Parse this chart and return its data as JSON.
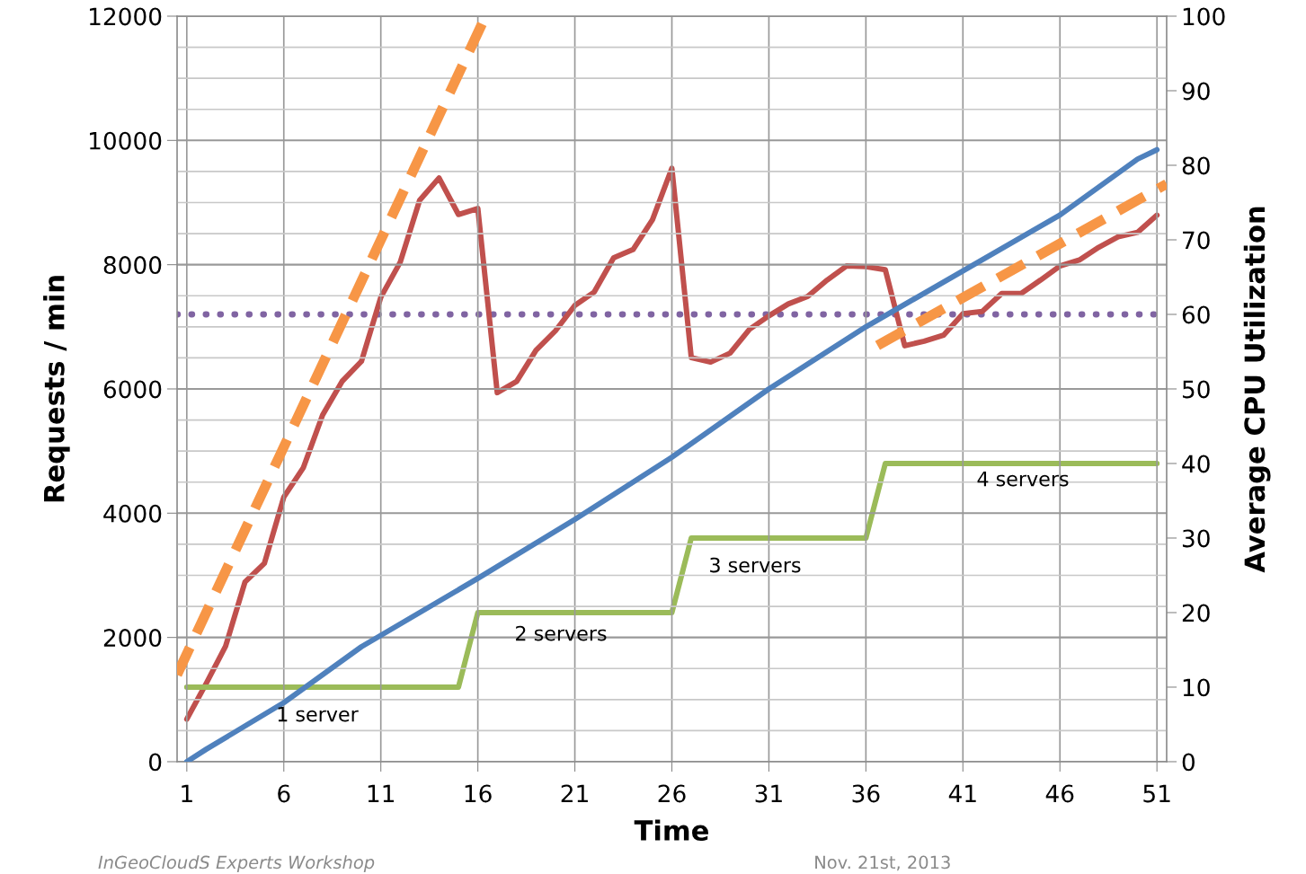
{
  "chart_data": {
    "type": "line",
    "xlabel": "Time",
    "ylabel": "Requests / min",
    "y2label": "Average CPU Utilization",
    "xlim": [
      0.5,
      51.5
    ],
    "xticks": [
      1,
      6,
      11,
      16,
      21,
      26,
      31,
      36,
      41,
      46,
      51
    ],
    "ylim": [
      0,
      12000
    ],
    "yticks": [
      0,
      2000,
      4000,
      6000,
      8000,
      10000,
      12000,
      {
        "value": 500,
        "label": null
      },
      {
        "value": 1000,
        "label": null
      },
      {
        "value": 1500,
        "label": null
      },
      {
        "value": 2500,
        "label": null
      },
      {
        "value": 3000,
        "label": null
      },
      {
        "value": 3500,
        "label": null
      },
      {
        "value": 4500,
        "label": null
      },
      {
        "value": 5000,
        "label": null
      },
      {
        "value": 5500,
        "label": null
      },
      {
        "value": 6500,
        "label": null
      },
      {
        "value": 7000,
        "label": null
      },
      {
        "value": 7500,
        "label": null
      },
      {
        "value": 8500,
        "label": null
      },
      {
        "value": 9000,
        "label": null
      },
      {
        "value": 9500,
        "label": null
      },
      {
        "value": 10500,
        "label": null
      },
      {
        "value": 11000,
        "label": null
      },
      {
        "value": 11500,
        "label": null
      }
    ],
    "y2lim": [
      0,
      100
    ],
    "y2ticks": [
      0,
      10,
      20,
      30,
      40,
      50,
      60,
      70,
      80,
      90,
      100
    ],
    "grid": true,
    "marker": "none",
    "series": [
      {
        "color": "#4f81bd",
        "x": [
          1,
          2,
          6,
          10,
          16,
          21,
          26,
          31,
          36,
          41,
          46,
          50,
          51
        ],
        "values": [
          0,
          200,
          950,
          1850,
          2950,
          3900,
          4900,
          6000,
          7000,
          7900,
          8800,
          9700,
          9850
        ]
      },
      {
        "color": "#c0504d",
        "axis": "y2",
        "x": [
          1,
          2,
          3,
          4,
          5,
          6,
          7,
          8,
          9,
          10,
          11,
          12,
          13,
          14,
          15,
          16,
          17,
          18,
          19,
          20,
          21,
          22,
          23,
          24,
          25,
          26,
          27,
          28,
          29,
          30,
          31,
          32,
          33,
          34,
          35,
          36,
          37,
          38,
          39,
          40,
          41,
          42,
          43,
          44,
          45,
          46,
          47,
          48,
          49,
          50,
          51
        ],
        "values": [
          5.7,
          10.5,
          15.5,
          24.1,
          26.6,
          35.5,
          39.4,
          46.5,
          51,
          53.7,
          62.3,
          67,
          75.3,
          78.3,
          73.4,
          74.2,
          49.5,
          51,
          55.2,
          57.8,
          61.2,
          63,
          67.6,
          68.7,
          72.7,
          79.6,
          54.2,
          53.6,
          54.8,
          58,
          59.8,
          61.4,
          62.4,
          64.6,
          66.5,
          66.4,
          66,
          55.8,
          56.4,
          57.2,
          60.1,
          60.4,
          62.8,
          62.8,
          64.6,
          66.5,
          67.3,
          69,
          70.4,
          71,
          73.3
        ]
      },
      {
        "color": "#9bbb59",
        "axis": "y2",
        "x": [
          1,
          15,
          16,
          26,
          27,
          36,
          37,
          51
        ],
        "values": [
          10,
          10,
          20,
          20,
          30,
          30,
          40,
          40
        ]
      },
      {
        "color": "#f79646",
        "line_style": "dashed",
        "x": [
          0.5,
          16.4
        ],
        "values": [
          1400,
          12000
        ]
      },
      {
        "color": "#f79646",
        "line_style": "dashed",
        "x": [
          36.6,
          51.5
        ],
        "values": [
          6700,
          9300
        ]
      }
    ],
    "ref_lines": [
      {
        "axis": "y2",
        "value": 60,
        "color": "#8064a2",
        "line_style": "dotted"
      }
    ],
    "annotations": [
      "1 server",
      "2 servers",
      "3 servers",
      "4 servers",
      "InGeoCloudS Experts Workshop",
      "Nov. 21st, 2013"
    ]
  }
}
